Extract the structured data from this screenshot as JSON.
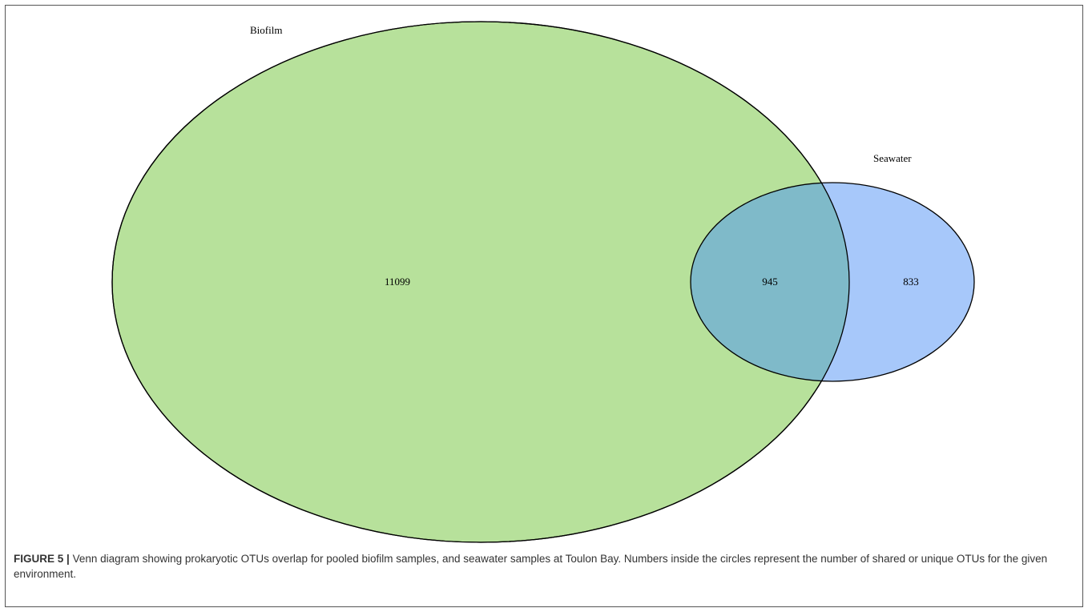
{
  "sets": {
    "biofilm": {
      "label": "Biofilm",
      "color": "#b7e19b"
    },
    "seawater": {
      "label": "Seawater",
      "color": "#a7c8fa"
    },
    "overlap_color": "#7fbac9"
  },
  "counts": {
    "biofilm_only": "11099",
    "shared": "945",
    "seawater_only": "833"
  },
  "caption": {
    "label": "FIGURE 5 |",
    "text": "Venn diagram showing prokaryotic OTUs overlap for pooled biofilm samples, and seawater samples at Toulon Bay. Numbers inside the circles represent the number of shared or unique OTUs for the given environment."
  }
}
